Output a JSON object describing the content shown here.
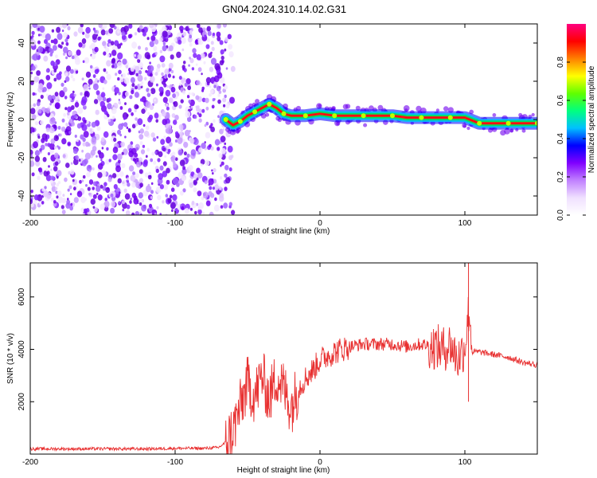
{
  "title": "GN04.2024.310.14.02.G31",
  "chart_data": [
    {
      "type": "heatmap",
      "xlabel": "Height of straight line (km)",
      "ylabel": "Frequency (Hz)",
      "xlim": [
        -200,
        150
      ],
      "ylim": [
        -50,
        50
      ],
      "xticks": [
        -200,
        -100,
        0,
        100
      ],
      "yticks": [
        -40,
        -20,
        0,
        20,
        40
      ],
      "colorbar": {
        "label": "Normalized spectral amplitude",
        "range": [
          0,
          1
        ],
        "ticks": [
          "0.0",
          "0.2",
          "0.4",
          "0.6",
          "0.8"
        ],
        "colors": [
          "#ffffff",
          "#f0e0ff",
          "#c080ff",
          "#8000ff",
          "#0000ff",
          "#00c0ff",
          "#00ff80",
          "#60ff00",
          "#ffff00",
          "#ff8000",
          "#ff0000",
          "#ff0080"
        ]
      },
      "noise_region_x": [
        -200,
        -65
      ],
      "ridge": {
        "x": [
          -65,
          -60,
          -55,
          -50,
          -45,
          -40,
          -35,
          -30,
          -25,
          -20,
          -10,
          0,
          10,
          20,
          30,
          40,
          50,
          60,
          70,
          80,
          90,
          100,
          110,
          120,
          130,
          140,
          150
        ],
        "y": [
          0,
          -3,
          -1,
          2,
          4,
          6,
          8,
          6,
          3,
          2,
          2,
          3,
          2,
          2,
          2,
          2,
          2,
          1,
          1,
          1,
          1,
          1,
          -2,
          -2,
          -2,
          -2,
          -2
        ]
      }
    },
    {
      "type": "line",
      "xlabel": "Height of straight line (km)",
      "ylabel": "SNR (10 * v/v)",
      "xlim": [
        -200,
        150
      ],
      "ylim": [
        0,
        7300
      ],
      "xticks": [
        -200,
        -100,
        0,
        100
      ],
      "yticks": [
        2000,
        4000,
        6000
      ],
      "series": [
        {
          "color": "#e83030",
          "x": [
            -200,
            -180,
            -160,
            -140,
            -120,
            -100,
            -80,
            -70,
            -65,
            -60,
            -55,
            -50,
            -45,
            -40,
            -35,
            -30,
            -25,
            -20,
            -15,
            -10,
            -5,
            0,
            10,
            20,
            30,
            40,
            50,
            60,
            70,
            80,
            85,
            90,
            95,
            100,
            103,
            105,
            110,
            120,
            130,
            140,
            150
          ],
          "values": [
            200,
            200,
            200,
            200,
            200,
            220,
            220,
            250,
            450,
            900,
            1800,
            2700,
            2200,
            3000,
            2100,
            3000,
            2500,
            1800,
            2500,
            2900,
            3200,
            3600,
            3900,
            4100,
            4200,
            4200,
            4200,
            4100,
            4200,
            4100,
            4000,
            4200,
            3600,
            4100,
            5600,
            3900,
            3900,
            3800,
            3700,
            3500,
            3400
          ]
        }
      ]
    }
  ]
}
